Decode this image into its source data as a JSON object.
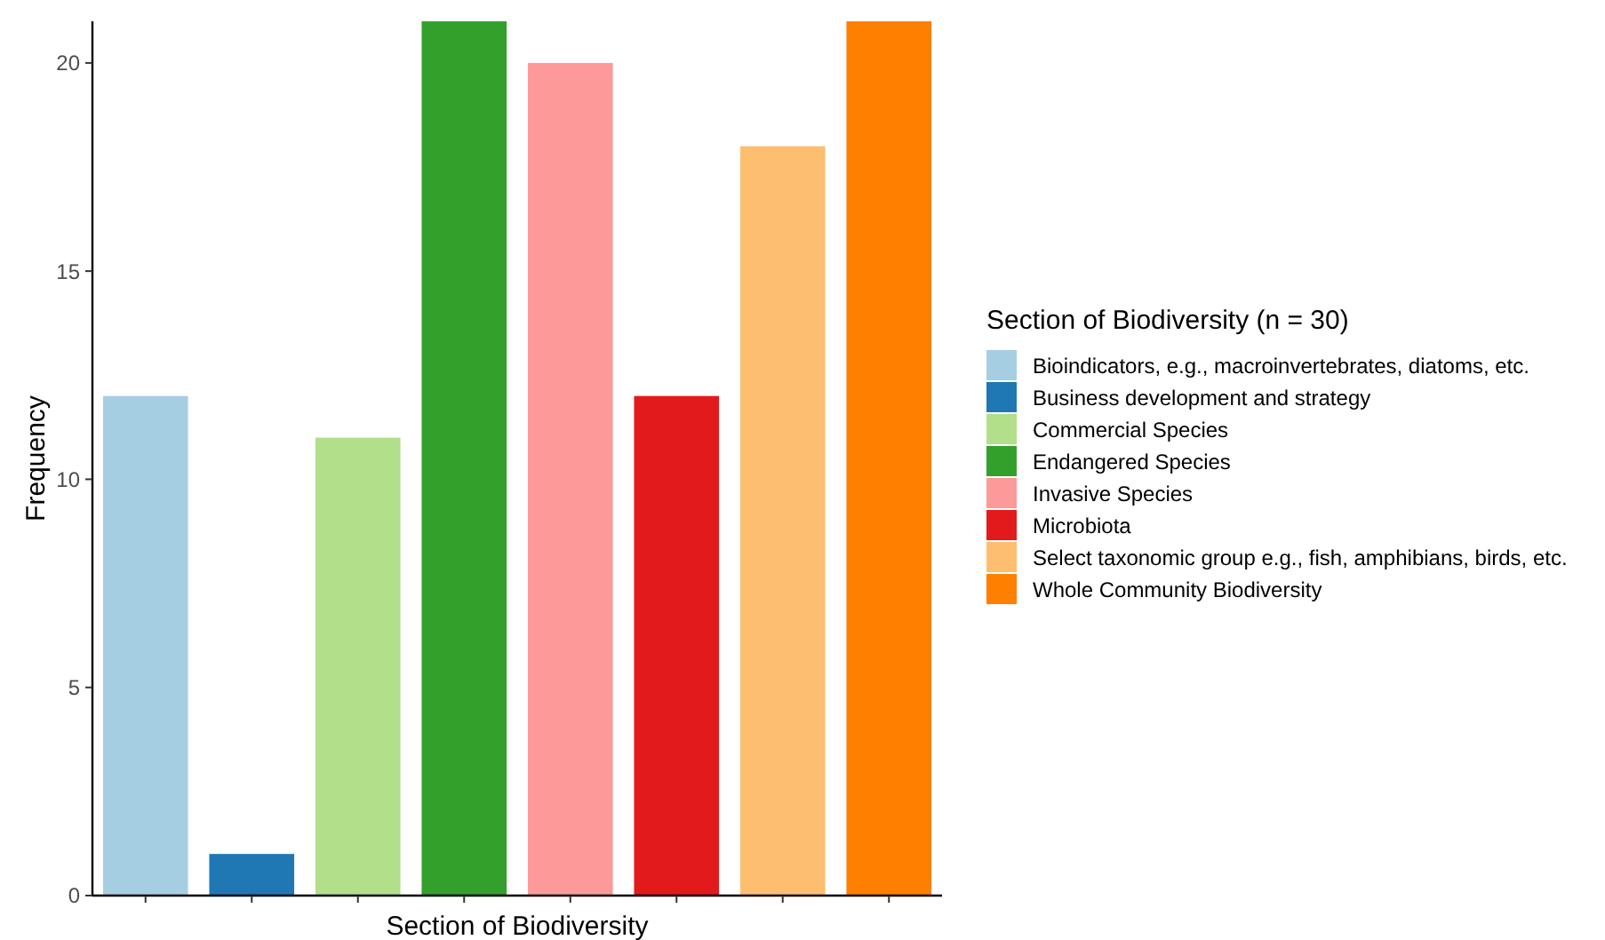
{
  "chart_data": {
    "type": "bar",
    "xlabel": "Section of Biodiversity",
    "ylabel": "Frequency",
    "legend_title": "Section of Biodiversity (n = 30)",
    "categories": [
      null,
      null,
      null,
      null,
      null,
      null,
      null,
      null
    ],
    "stacked": true,
    "series": [
      {
        "name": "Bioindicators, e.g., macroinvertebrates, diatoms, etc.",
        "color": "#a6cee3",
        "values": [
          12,
          null,
          null,
          null,
          null,
          null,
          null,
          null
        ]
      },
      {
        "name": "Business development and strategy",
        "color": "#1f78b4",
        "values": [
          null,
          1,
          null,
          null,
          null,
          null,
          null,
          null
        ]
      },
      {
        "name": "Commercial Species",
        "color": "#b2df8a",
        "values": [
          null,
          null,
          11,
          null,
          null,
          null,
          null,
          null
        ]
      },
      {
        "name": "Endangered Species",
        "color": "#33a02c",
        "values": [
          null,
          null,
          null,
          21,
          null,
          null,
          null,
          null
        ]
      },
      {
        "name": "Invasive Species",
        "color": "#fb9a99",
        "values": [
          null,
          null,
          null,
          null,
          20,
          null,
          null,
          null
        ]
      },
      {
        "name": "Microbiota",
        "color": "#e31a1c",
        "values": [
          null,
          null,
          null,
          null,
          null,
          12,
          null,
          null
        ]
      },
      {
        "name": "Select taxonomic group e.g., fish, amphibians, birds, etc.",
        "color": "#fdbf6f",
        "values": [
          null,
          null,
          null,
          null,
          null,
          null,
          18,
          null
        ]
      },
      {
        "name": "Whole Community Biodiversity",
        "color": "#ff7f00",
        "values": [
          null,
          null,
          null,
          null,
          null,
          null,
          null,
          21
        ]
      }
    ],
    "ylim": [
      0,
      21
    ],
    "yticks": [
      0,
      5,
      10,
      15,
      20
    ],
    "legend": "right",
    "grid": false
  }
}
